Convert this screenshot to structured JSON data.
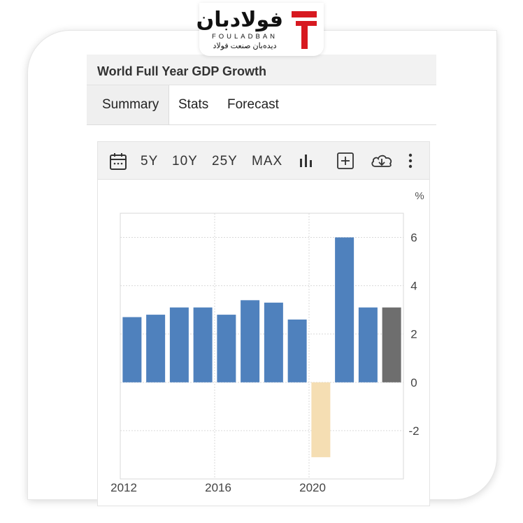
{
  "logo": {
    "fa_name": "فولادبان",
    "en_name": "FOULADBAN",
    "tagline": "دیده‌بان صنعت فولاد",
    "brand_color": "#d71920"
  },
  "panel": {
    "title": "World Full Year GDP Growth",
    "tabs": [
      {
        "label": "Summary",
        "active": true
      },
      {
        "label": "Stats",
        "active": false
      },
      {
        "label": "Forecast",
        "active": false
      }
    ]
  },
  "toolbar": {
    "calendar_icon": "calendar-icon",
    "ranges": [
      "5Y",
      "10Y",
      "25Y",
      "MAX"
    ],
    "bar_chart_icon": "bar-chart-icon",
    "add_icon": "add-square-icon",
    "download_icon": "cloud-download-icon",
    "more_icon": "more-vertical-icon"
  },
  "chart_data": {
    "type": "bar",
    "unit_label": "%",
    "x": [
      2012,
      2013,
      2014,
      2015,
      2016,
      2017,
      2018,
      2019,
      2020,
      2021,
      2022,
      2023
    ],
    "values": [
      2.7,
      2.8,
      3.1,
      3.1,
      2.8,
      3.4,
      3.3,
      2.6,
      -3.1,
      6.0,
      3.1,
      3.1
    ],
    "x_tick_labels": [
      "2012",
      "2016",
      "2020"
    ],
    "x_tick_values": [
      2012,
      2016,
      2020
    ],
    "y_ticks": [
      -2,
      0,
      2,
      4,
      6
    ],
    "ylim": [
      -4,
      7
    ],
    "grid": true,
    "y_axis_side": "right",
    "colors": {
      "positive": "#4f81bd",
      "negative": "#f5deb3",
      "forecast": "#6e6e6e",
      "grid": "#d9d9d9"
    },
    "forecast_from": 2023
  }
}
